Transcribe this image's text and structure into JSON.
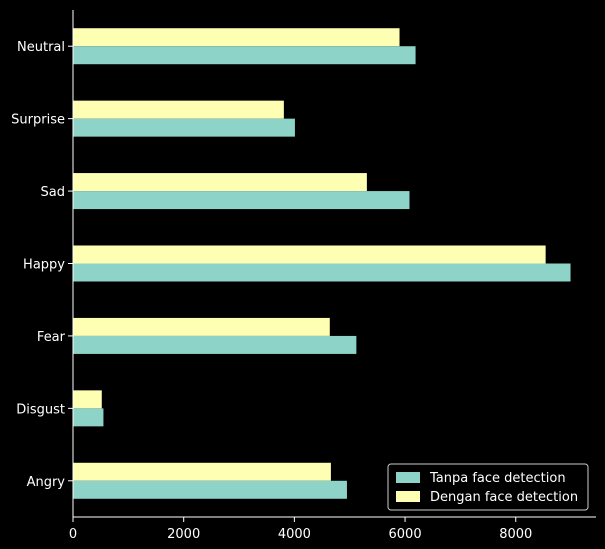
{
  "chart_data": {
    "type": "bar",
    "orientation": "horizontal",
    "categories": [
      "Angry",
      "Disgust",
      "Fear",
      "Happy",
      "Sad",
      "Surprise",
      "Neutral"
    ],
    "series": [
      {
        "name": "Tanpa face detection",
        "color": "#8dd3c7",
        "values": [
          4950,
          550,
          5120,
          8990,
          6080,
          4010,
          6190
        ]
      },
      {
        "name": "Dengan face detection",
        "color": "#ffffb3",
        "values": [
          4660,
          520,
          4640,
          8540,
          5310,
          3810,
          5900
        ]
      }
    ],
    "x_ticks": [
      0,
      2000,
      4000,
      6000,
      8000
    ],
    "xlim": [
      0,
      9450
    ],
    "grid": false,
    "legend_position": "bottom-right",
    "background": "#000000",
    "foreground": "#ffffff"
  }
}
